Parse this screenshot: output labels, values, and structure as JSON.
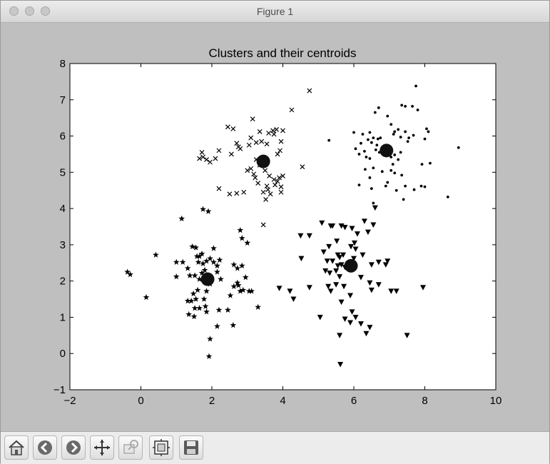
{
  "window": {
    "title": "Figure 1"
  },
  "toolbar": {
    "buttons": [
      {
        "name": "home-button",
        "icon": "home-icon"
      },
      {
        "name": "back-button",
        "icon": "back-arrow-icon"
      },
      {
        "name": "forward-button",
        "icon": "forward-arrow-icon"
      },
      {
        "name": "pan-button",
        "icon": "pan-arrows-icon"
      },
      {
        "name": "zoom-button",
        "icon": "zoom-rect-icon"
      },
      {
        "name": "subplots-button",
        "icon": "subplots-config-icon"
      },
      {
        "name": "save-button",
        "icon": "save-disk-icon"
      }
    ]
  },
  "colors": {
    "figure_bg": "#bfbfbf",
    "axes_bg": "#ffffff",
    "marker": "#000000"
  },
  "chart_data": {
    "type": "scatter",
    "title": "Clusters and their centroids",
    "xlabel": "",
    "ylabel": "",
    "xlim": [
      -2,
      10
    ],
    "ylim": [
      -1,
      8
    ],
    "xticks": [
      "−2",
      "0",
      "2",
      "4",
      "6",
      "8",
      "10"
    ],
    "yticks": [
      "−1",
      "0",
      "1",
      "2",
      "3",
      "4",
      "5",
      "6",
      "7",
      "8"
    ],
    "grid": false,
    "legend": false,
    "series": [
      {
        "marker": "x",
        "points": [
          [
            4.75,
            7.25
          ],
          [
            4.25,
            6.72
          ],
          [
            3.15,
            6.47
          ],
          [
            2.45,
            6.25
          ],
          [
            2.6,
            6.2
          ],
          [
            3.35,
            6.12
          ],
          [
            3.6,
            6.08
          ],
          [
            3.75,
            6.05
          ],
          [
            3.72,
            6.15
          ],
          [
            3.82,
            6.18
          ],
          [
            4.0,
            6.15
          ],
          [
            3.1,
            5.95
          ],
          [
            3.25,
            5.82
          ],
          [
            3.05,
            5.75
          ],
          [
            3.4,
            5.85
          ],
          [
            3.55,
            5.78
          ],
          [
            2.75,
            5.7
          ],
          [
            2.2,
            5.6
          ],
          [
            2.55,
            5.5
          ],
          [
            2.8,
            5.65
          ],
          [
            2.7,
            5.8
          ],
          [
            3.95,
            5.85
          ],
          [
            3.92,
            5.6
          ],
          [
            3.85,
            5.5
          ],
          [
            1.65,
            5.38
          ],
          [
            1.75,
            5.42
          ],
          [
            1.85,
            5.35
          ],
          [
            1.95,
            5.28
          ],
          [
            2.1,
            5.38
          ],
          [
            1.72,
            5.55
          ],
          [
            3.25,
            5.35
          ],
          [
            3.35,
            5.2
          ],
          [
            3.1,
            5.1
          ],
          [
            3.18,
            4.95
          ],
          [
            3.22,
            4.85
          ],
          [
            3.0,
            5.05
          ],
          [
            3.5,
            5.05
          ],
          [
            3.62,
            4.9
          ],
          [
            3.75,
            4.8
          ],
          [
            3.9,
            4.85
          ],
          [
            4.0,
            4.9
          ],
          [
            3.85,
            4.75
          ],
          [
            3.78,
            4.65
          ],
          [
            3.95,
            4.6
          ],
          [
            3.55,
            4.62
          ],
          [
            3.58,
            4.52
          ],
          [
            3.45,
            4.45
          ],
          [
            3.65,
            4.4
          ],
          [
            3.95,
            4.45
          ],
          [
            3.3,
            4.7
          ],
          [
            2.9,
            4.45
          ],
          [
            2.5,
            4.4
          ],
          [
            2.7,
            4.42
          ],
          [
            2.2,
            4.55
          ],
          [
            3.52,
            4.25
          ],
          [
            4.55,
            5.15
          ],
          [
            3.45,
            3.55
          ]
        ]
      },
      {
        "marker": "dot",
        "points": [
          [
            7.75,
            7.38
          ],
          [
            7.35,
            6.85
          ],
          [
            7.65,
            6.82
          ],
          [
            7.45,
            6.82
          ],
          [
            6.7,
            6.78
          ],
          [
            6.6,
            6.65
          ],
          [
            6.95,
            6.55
          ],
          [
            7.8,
            6.72
          ],
          [
            7.05,
            6.32
          ],
          [
            7.15,
            6.12
          ],
          [
            7.25,
            6.18
          ],
          [
            7.45,
            6.12
          ],
          [
            7.12,
            6.05
          ],
          [
            7.32,
            5.97
          ],
          [
            7.55,
            5.95
          ],
          [
            7.68,
            6.02
          ],
          [
            7.52,
            5.85
          ],
          [
            6.0,
            6.1
          ],
          [
            6.25,
            6.05
          ],
          [
            6.45,
            6.1
          ],
          [
            6.55,
            5.95
          ],
          [
            6.68,
            5.92
          ],
          [
            6.75,
            5.95
          ],
          [
            6.4,
            5.9
          ],
          [
            6.5,
            5.82
          ],
          [
            6.65,
            5.75
          ],
          [
            6.62,
            5.62
          ],
          [
            6.72,
            5.55
          ],
          [
            6.3,
            5.58
          ],
          [
            6.05,
            5.65
          ],
          [
            6.2,
            5.8
          ],
          [
            6.15,
            5.5
          ],
          [
            6.35,
            5.42
          ],
          [
            6.45,
            5.38
          ],
          [
            7.05,
            5.42
          ],
          [
            7.15,
            5.48
          ],
          [
            7.25,
            5.35
          ],
          [
            7.32,
            5.55
          ],
          [
            7.1,
            5.22
          ],
          [
            7.05,
            5.05
          ],
          [
            7.15,
            4.98
          ],
          [
            7.35,
            4.92
          ],
          [
            6.8,
            5.02
          ],
          [
            6.55,
            5.12
          ],
          [
            6.32,
            5.08
          ],
          [
            6.45,
            4.85
          ],
          [
            6.15,
            4.65
          ],
          [
            6.5,
            4.55
          ],
          [
            6.9,
            4.62
          ],
          [
            6.95,
            4.72
          ],
          [
            7.2,
            4.5
          ],
          [
            7.4,
            4.25
          ],
          [
            7.45,
            4.62
          ],
          [
            7.7,
            4.52
          ],
          [
            7.9,
            4.62
          ],
          [
            7.92,
            5.22
          ],
          [
            8.15,
            5.25
          ],
          [
            8.0,
            5.92
          ],
          [
            8.1,
            6.12
          ],
          [
            8.05,
            6.2
          ],
          [
            8.95,
            5.68
          ],
          [
            8.65,
            4.32
          ],
          [
            8.0,
            4.6
          ],
          [
            5.3,
            5.88
          ],
          [
            6.55,
            4.15
          ]
        ]
      },
      {
        "marker": "star",
        "points": [
          [
            1.15,
            3.72
          ],
          [
            0.42,
            2.72
          ],
          [
            -0.38,
            2.25
          ],
          [
            -0.3,
            2.18
          ],
          [
            0.15,
            1.55
          ],
          [
            1.0,
            2.52
          ],
          [
            1.0,
            2.12
          ],
          [
            1.18,
            2.52
          ],
          [
            1.32,
            2.35
          ],
          [
            1.45,
            2.95
          ],
          [
            1.55,
            2.92
          ],
          [
            1.58,
            2.68
          ],
          [
            1.65,
            2.68
          ],
          [
            1.72,
            2.75
          ],
          [
            1.62,
            2.52
          ],
          [
            1.75,
            2.48
          ],
          [
            1.38,
            2.15
          ],
          [
            1.52,
            2.15
          ],
          [
            1.65,
            2.05
          ],
          [
            1.72,
            2.22
          ],
          [
            1.8,
            2.3
          ],
          [
            1.85,
            2.55
          ],
          [
            1.95,
            2.62
          ],
          [
            2.05,
            2.52
          ],
          [
            2.15,
            2.42
          ],
          [
            2.22,
            2.58
          ],
          [
            2.15,
            2.25
          ],
          [
            2.25,
            2.05
          ],
          [
            1.95,
            1.92
          ],
          [
            1.85,
            1.72
          ],
          [
            1.6,
            1.75
          ],
          [
            1.48,
            1.65
          ],
          [
            1.55,
            1.5
          ],
          [
            1.42,
            1.45
          ],
          [
            1.32,
            1.45
          ],
          [
            1.35,
            1.08
          ],
          [
            1.5,
            1.02
          ],
          [
            1.65,
            1.25
          ],
          [
            1.82,
            1.3
          ],
          [
            1.85,
            1.15
          ],
          [
            1.78,
            1.5
          ],
          [
            1.52,
            1.25
          ],
          [
            1.75,
            3.98
          ],
          [
            1.9,
            3.92
          ],
          [
            2.05,
            2.9
          ],
          [
            2.62,
            2.45
          ],
          [
            2.72,
            2.35
          ],
          [
            2.85,
            2.42
          ],
          [
            2.95,
            2.1
          ],
          [
            2.72,
            1.95
          ],
          [
            2.62,
            1.85
          ],
          [
            2.75,
            1.88
          ],
          [
            2.8,
            1.72
          ],
          [
            2.88,
            1.75
          ],
          [
            3.05,
            1.72
          ],
          [
            3.12,
            1.72
          ],
          [
            2.52,
            1.6
          ],
          [
            3.0,
            3.05
          ],
          [
            2.8,
            3.4
          ],
          [
            2.85,
            3.18
          ],
          [
            2.45,
            1.2
          ],
          [
            2.2,
            1.2
          ],
          [
            2.15,
            0.75
          ],
          [
            2.6,
            0.78
          ],
          [
            1.95,
            0.4
          ],
          [
            1.92,
            -0.08
          ],
          [
            3.3,
            1.28
          ]
        ]
      },
      {
        "marker": "triangle",
        "points": [
          [
            6.6,
            4.02
          ],
          [
            6.3,
            3.65
          ],
          [
            6.55,
            3.55
          ],
          [
            5.1,
            3.6
          ],
          [
            5.35,
            3.52
          ],
          [
            5.4,
            3.52
          ],
          [
            5.65,
            3.52
          ],
          [
            5.75,
            3.48
          ],
          [
            6.4,
            3.35
          ],
          [
            5.95,
            3.45
          ],
          [
            6.1,
            3.3
          ],
          [
            6.02,
            3.05
          ],
          [
            6.05,
            2.88
          ],
          [
            4.5,
            3.25
          ],
          [
            4.75,
            3.25
          ],
          [
            5.52,
            3.1
          ],
          [
            5.3,
            2.95
          ],
          [
            5.92,
            2.95
          ],
          [
            5.55,
            2.72
          ],
          [
            5.7,
            2.72
          ],
          [
            5.6,
            2.65
          ],
          [
            6.0,
            2.62
          ],
          [
            4.52,
            2.62
          ],
          [
            5.25,
            2.55
          ],
          [
            5.4,
            2.55
          ],
          [
            5.55,
            2.42
          ],
          [
            5.65,
            2.45
          ],
          [
            5.75,
            2.38
          ],
          [
            5.5,
            2.28
          ],
          [
            5.2,
            2.28
          ],
          [
            5.32,
            2.22
          ],
          [
            5.6,
            2.12
          ],
          [
            5.5,
            1.9
          ],
          [
            5.72,
            1.85
          ],
          [
            5.28,
            1.85
          ],
          [
            6.2,
            2.1
          ],
          [
            6.5,
            2.45
          ],
          [
            6.7,
            2.52
          ],
          [
            6.95,
            2.55
          ],
          [
            6.45,
            1.95
          ],
          [
            6.5,
            1.75
          ],
          [
            6.7,
            1.9
          ],
          [
            7.05,
            1.72
          ],
          [
            7.2,
            1.72
          ],
          [
            5.35,
            1.72
          ],
          [
            5.65,
            1.42
          ],
          [
            7.95,
            1.82
          ],
          [
            3.9,
            1.8
          ],
          [
            4.2,
            1.72
          ],
          [
            4.3,
            1.5
          ],
          [
            4.75,
            1.82
          ],
          [
            5.9,
            1.6
          ],
          [
            5.95,
            1.15
          ],
          [
            5.05,
            1.0
          ],
          [
            5.75,
            0.95
          ],
          [
            5.9,
            0.85
          ],
          [
            6.05,
            1.0
          ],
          [
            6.2,
            0.82
          ],
          [
            6.45,
            0.72
          ],
          [
            6.35,
            0.55
          ],
          [
            5.6,
            0.5
          ],
          [
            7.5,
            0.5
          ],
          [
            5.62,
            -0.3
          ],
          [
            6.25,
            2.72
          ],
          [
            6.9,
            2.45
          ],
          [
            5.15,
            2.8
          ]
        ]
      },
      {
        "marker": "centroid",
        "points": [
          [
            3.45,
            5.3
          ],
          [
            6.92,
            5.6
          ],
          [
            1.88,
            2.05
          ],
          [
            5.92,
            2.42
          ]
        ]
      }
    ]
  }
}
